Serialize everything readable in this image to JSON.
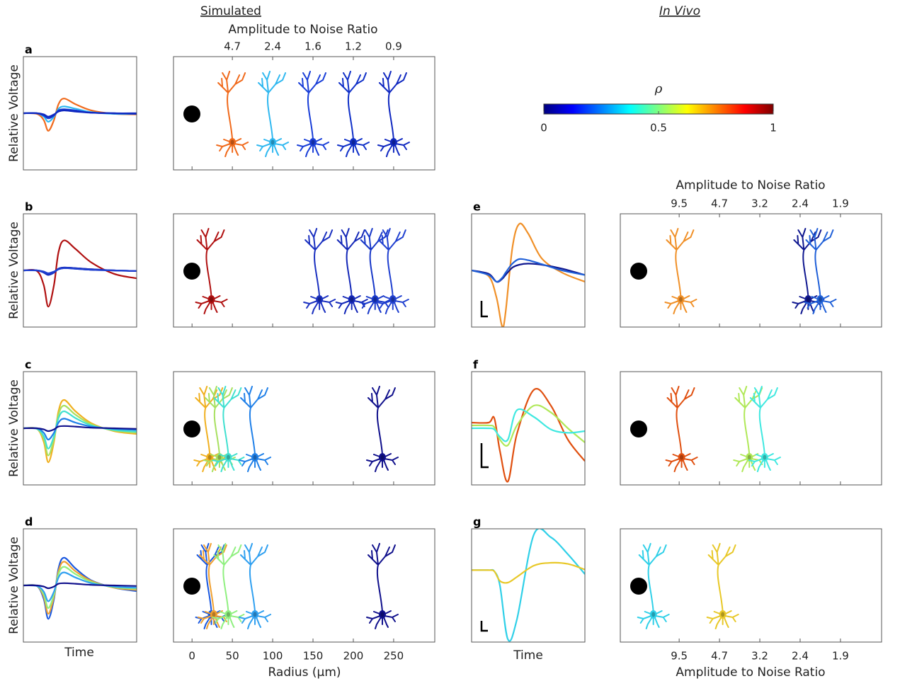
{
  "headers": {
    "simulated": "Simulated",
    "in_vivo": "In Vivo"
  },
  "colorbar": {
    "label": "ρ",
    "colors": [
      "#00007f",
      "#0000ff",
      "#007fff",
      "#00ffff",
      "#7fff7f",
      "#ffff00",
      "#ff7f00",
      "#ff0000",
      "#7f0000"
    ],
    "lim": [
      0,
      1
    ],
    "ticks": [
      0,
      0.5,
      1
    ]
  },
  "simulated": {
    "top_axis": {
      "label": "Amplitude to Noise Ratio",
      "ticks": [
        {
          "value": 50,
          "label": "4.7"
        },
        {
          "value": 100,
          "label": "2.4"
        },
        {
          "value": 150,
          "label": "1.6"
        },
        {
          "value": 200,
          "label": "1.2"
        },
        {
          "value": 250,
          "label": "0.9"
        }
      ]
    },
    "x_axis": {
      "label": "Radius (μm)",
      "xlim": [
        -23,
        301
      ],
      "xticks": [
        0,
        50,
        100,
        150,
        200,
        250
      ]
    },
    "time_label": "Time",
    "ylim": [
      -1,
      1
    ],
    "time": [
      0,
      0.12,
      0.18,
      0.22,
      0.27,
      0.31,
      0.36,
      0.46,
      0.6,
      0.8,
      1
    ],
    "panels": [
      {
        "label": "a",
        "ylabel": "Relative Voltage",
        "units": [
          {
            "color": "#f06a1c",
            "radius": 50,
            "values": [
              0,
              -0.01,
              -0.12,
              -0.31,
              -0.12,
              0.16,
              0.26,
              0.16,
              0.05,
              -0.01,
              -0.02
            ]
          },
          {
            "color": "#30b8f0",
            "radius": 100,
            "values": [
              0,
              0,
              -0.06,
              -0.15,
              -0.06,
              0.08,
              0.12,
              0.08,
              0.02,
              -0.01,
              -0.01
            ]
          },
          {
            "color": "#1a3fd8",
            "radius": 150,
            "values": [
              0,
              0,
              -0.04,
              -0.09,
              -0.04,
              0.05,
              0.07,
              0.05,
              0.01,
              0,
              -0.01
            ]
          },
          {
            "color": "#1030c8",
            "radius": 200,
            "values": [
              0,
              0,
              -0.03,
              -0.07,
              -0.03,
              0.04,
              0.06,
              0.04,
              0.01,
              0,
              -0.01
            ]
          },
          {
            "color": "#1028c0",
            "radius": 250,
            "values": [
              0,
              0,
              -0.02,
              -0.06,
              -0.02,
              0.03,
              0.05,
              0.03,
              0.01,
              0,
              0
            ]
          }
        ]
      },
      {
        "label": "b",
        "ylabel": "Relative Voltage",
        "units": [
          {
            "color": "#b01010",
            "radius": 24,
            "values": [
              0,
              -0.01,
              -0.26,
              -0.64,
              -0.26,
              0.32,
              0.53,
              0.38,
              0.14,
              -0.06,
              -0.14
            ]
          },
          {
            "color": "#1a30c0",
            "radius": 158,
            "values": [
              0,
              0,
              -0.04,
              -0.08,
              -0.04,
              0.03,
              0.05,
              0.04,
              0.02,
              0,
              -0.01
            ]
          },
          {
            "color": "#1428b8",
            "radius": 198,
            "values": [
              0,
              0,
              -0.03,
              -0.07,
              -0.03,
              0.03,
              0.05,
              0.04,
              0.02,
              0,
              -0.01
            ]
          },
          {
            "color": "#1838c8",
            "radius": 227,
            "values": [
              0,
              0,
              -0.03,
              -0.06,
              -0.03,
              0.02,
              0.04,
              0.03,
              0.01,
              0,
              -0.01
            ]
          },
          {
            "color": "#2040d0",
            "radius": 249,
            "values": [
              0,
              0,
              -0.02,
              -0.05,
              -0.02,
              0.02,
              0.04,
              0.03,
              0.01,
              0,
              -0.01
            ]
          }
        ]
      },
      {
        "label": "c",
        "ylabel": "Relative Voltage",
        "units": [
          {
            "color": "#f0b020",
            "radius": 22,
            "values": [
              0,
              -0.01,
              -0.24,
              -0.6,
              -0.24,
              0.3,
              0.5,
              0.3,
              0.09,
              -0.05,
              -0.1
            ]
          },
          {
            "color": "#a8e060",
            "radius": 34,
            "values": [
              0,
              -0.01,
              -0.19,
              -0.48,
              -0.19,
              0.24,
              0.4,
              0.24,
              0.07,
              -0.04,
              -0.08
            ]
          },
          {
            "color": "#40e0d0",
            "radius": 45,
            "values": [
              0,
              -0.01,
              -0.14,
              -0.36,
              -0.14,
              0.18,
              0.3,
              0.18,
              0.05,
              -0.03,
              -0.06
            ]
          },
          {
            "color": "#2080e8",
            "radius": 78,
            "values": [
              0,
              0,
              -0.08,
              -0.2,
              -0.08,
              0.1,
              0.17,
              0.1,
              0.03,
              -0.01,
              -0.03
            ]
          },
          {
            "color": "#10108c",
            "radius": 236,
            "values": [
              0,
              0,
              -0.02,
              -0.05,
              -0.02,
              0.03,
              0.04,
              0.03,
              0.01,
              0,
              -0.01
            ]
          }
        ]
      },
      {
        "label": "d",
        "ylabel": "Relative Voltage",
        "units": [
          {
            "color": "#1a58e0",
            "radius": 24,
            "values": [
              0,
              -0.01,
              -0.24,
              -0.59,
              -0.24,
              0.3,
              0.49,
              0.3,
              0.09,
              -0.04,
              -0.1
            ]
          },
          {
            "color": "#f0a030",
            "radius": 27,
            "values": [
              0,
              -0.01,
              -0.2,
              -0.5,
              -0.2,
              0.25,
              0.42,
              0.25,
              0.08,
              -0.04,
              -0.08
            ]
          },
          {
            "color": "#90f080",
            "radius": 45,
            "values": [
              0,
              -0.01,
              -0.16,
              -0.4,
              -0.16,
              0.2,
              0.33,
              0.2,
              0.06,
              -0.03,
              -0.06
            ]
          },
          {
            "color": "#30a0f0",
            "radius": 78,
            "values": [
              0,
              -0.01,
              -0.11,
              -0.28,
              -0.11,
              0.14,
              0.23,
              0.14,
              0.04,
              -0.02,
              -0.04
            ]
          },
          {
            "color": "#10108c",
            "radius": 236,
            "values": [
              0,
              0,
              -0.02,
              -0.05,
              -0.02,
              0.03,
              0.04,
              0.03,
              0.01,
              0,
              -0.01
            ]
          }
        ]
      }
    ]
  },
  "in_vivo": {
    "top_axis": {
      "label": "Amplitude to Noise Ratio",
      "ticks": [
        {
          "value": 50,
          "label": "9.5"
        },
        {
          "value": 100,
          "label": "4.7"
        },
        {
          "value": 150,
          "label": "3.2"
        },
        {
          "value": 200,
          "label": "2.4"
        },
        {
          "value": 250,
          "label": "1.9"
        }
      ]
    },
    "x_axis": {
      "label": "Amplitude to Noise Ratio",
      "xlim": [
        -23,
        301
      ],
      "xticks": [
        {
          "value": 50,
          "label": "9.5"
        },
        {
          "value": 100,
          "label": "4.7"
        },
        {
          "value": 150,
          "label": "3.2"
        },
        {
          "value": 200,
          "label": "2.4"
        },
        {
          "value": 250,
          "label": "1.9"
        }
      ]
    },
    "time_label": "Time",
    "ylim": [
      -1,
      1
    ],
    "panels": [
      {
        "label": "e",
        "time": [
          0,
          0.15,
          0.22,
          0.27,
          0.3,
          0.36,
          0.42,
          0.5,
          0.62,
          0.8,
          1
        ],
        "units": [
          {
            "color": "#f09028",
            "radius": 52,
            "values": [
              0,
              -0.1,
              -0.48,
              -0.99,
              -0.74,
              0.4,
              0.82,
              0.65,
              0.21,
              -0.04,
              -0.2
            ]
          },
          {
            "color": "#101890",
            "radius": 210,
            "values": [
              0,
              -0.06,
              -0.2,
              -0.15,
              -0.08,
              0.05,
              0.1,
              0.12,
              0.1,
              0.03,
              -0.08
            ]
          },
          {
            "color": "#2060d8",
            "radius": 225,
            "values": [
              0,
              -0.08,
              -0.2,
              -0.13,
              -0.04,
              0.12,
              0.2,
              0.18,
              0.11,
              0,
              -0.08
            ]
          }
        ]
      },
      {
        "label": "f",
        "time": [
          0,
          0.15,
          0.2,
          0.25,
          0.32,
          0.4,
          0.55,
          0.7,
          0.85,
          1
        ],
        "units": [
          {
            "color": "#e05010",
            "radius": 53,
            "values": [
              0.1,
              0.1,
              0.18,
              -0.4,
              -0.94,
              -0.1,
              0.68,
              0.4,
              -0.2,
              -0.58
            ]
          },
          {
            "color": "#b0e858",
            "radius": 137,
            "values": [
              0.05,
              0.05,
              0.02,
              -0.2,
              -0.3,
              0.05,
              0.4,
              0.28,
              0,
              -0.25
            ]
          },
          {
            "color": "#40e8e0",
            "radius": 156,
            "values": [
              0,
              0,
              -0.02,
              -0.15,
              -0.2,
              0.32,
              0.2,
              -0.02,
              -0.08,
              -0.05
            ]
          }
        ]
      },
      {
        "label": "g",
        "time": [
          0,
          0.15,
          0.2,
          0.25,
          0.32,
          0.4,
          0.55,
          0.7,
          0.85,
          1
        ],
        "units": [
          {
            "color": "#30d0e8",
            "radius": 18,
            "values": [
              0.27,
              0.27,
              0.25,
              0,
              -0.95,
              -0.6,
              0.9,
              0.85,
              0.55,
              0.2
            ]
          },
          {
            "color": "#e8c828",
            "radius": 104,
            "values": [
              0.27,
              0.27,
              0.25,
              0.08,
              0.05,
              0.15,
              0.35,
              0.4,
              0.38,
              0.28
            ]
          }
        ]
      }
    ]
  }
}
